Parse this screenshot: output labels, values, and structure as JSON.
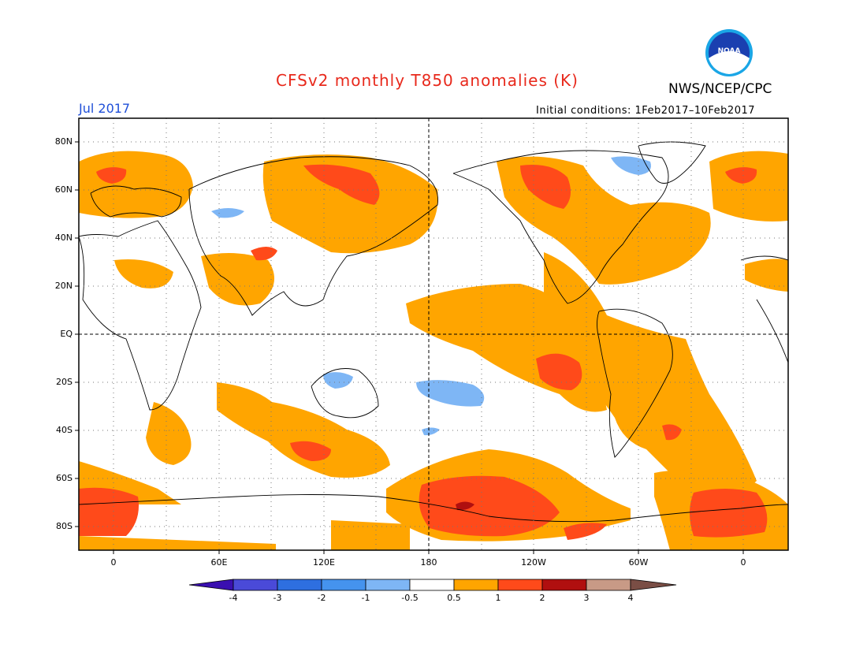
{
  "header": {
    "title": "CFSv2 monthly T850 anomalies (K)",
    "org": "NWS/NCEP/CPC",
    "month": "Jul 2017",
    "initial_conditions": "Initial conditions: 1Feb2017–10Feb2017",
    "logo_text": "NOAA"
  },
  "map": {
    "lat_labels": [
      "80N",
      "60N",
      "40N",
      "20N",
      "EQ",
      "20S",
      "40S",
      "60S",
      "80S"
    ],
    "lon_labels": [
      "0",
      "60E",
      "120E",
      "180",
      "120W",
      "60W",
      "0"
    ]
  },
  "colorbar": {
    "labels": [
      "-4",
      "-3",
      "-2",
      "-1",
      "-0.5",
      "0.5",
      "1",
      "2",
      "3",
      "4"
    ],
    "colors": [
      "#3a0fb0",
      "#4a4ad8",
      "#2e6fe0",
      "#4593ee",
      "#7eb6f5",
      "#ffffff",
      "#ffa500",
      "#ff4a1a",
      "#b00f0f",
      "#c89a86",
      "#7a4e45"
    ]
  },
  "colors": {
    "anom_pos_1": "#ffa500",
    "anom_pos_2": "#ff4a1a",
    "anom_pos_3": "#b00f0f",
    "anom_neg_1": "#7eb6f5",
    "title_red": "#e8291c",
    "month_blue": "#1f4fd8"
  }
}
